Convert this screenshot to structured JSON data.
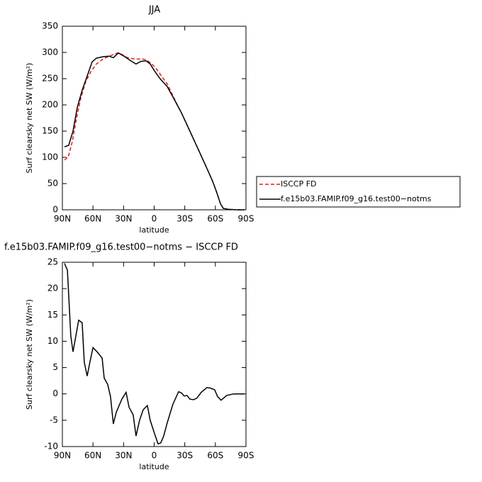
{
  "chart_data": [
    {
      "type": "line",
      "title": "JJA",
      "xlabel": "latitude",
      "ylabel": "Surf clearsky net SW (W/m²)",
      "xlim": [
        90,
        -90
      ],
      "xticks": [
        {
          "value": 90,
          "label": "90N"
        },
        {
          "value": 60,
          "label": "60N"
        },
        {
          "value": 30,
          "label": "30N"
        },
        0,
        {
          "value": -30,
          "label": "30S"
        },
        {
          "value": -60,
          "label": "60S"
        },
        {
          "value": -90,
          "label": "90S"
        }
      ],
      "ylim": [
        0,
        350
      ],
      "yticks": [
        0,
        50,
        100,
        150,
        200,
        250,
        300,
        350
      ],
      "legend": "right",
      "series": [
        {
          "name": "ISCCP FD",
          "color": "#e41a1c",
          "linestyle": "dashed",
          "x": [
            88,
            84.4,
            80.3,
            76.1,
            71.9,
            67,
            62.2,
            56.7,
            49.7,
            42.8,
            35.8,
            32.4,
            26.1,
            17.8,
            12.2,
            8,
            3.2,
            -1.7,
            -7.2,
            -12.8,
            -19,
            -26.7,
            -35,
            -43.3,
            -51,
            -57.2,
            -61.4,
            -64.9,
            -67.6,
            -72.5,
            -81.5,
            -88.5
          ],
          "values": [
            95,
            100,
            130,
            175,
            213,
            245,
            263,
            278,
            288,
            294,
            299,
            297,
            290,
            287,
            288,
            286,
            280,
            270,
            255,
            240,
            215,
            185,
            150,
            115,
            82,
            55,
            33,
            12,
            3,
            1,
            0,
            0
          ]
        },
        {
          "name": "f.e15b03.FAMIP.f09_g16.test00−notms",
          "color": "#000000",
          "linestyle": "solid",
          "x": [
            88,
            83.8,
            79.6,
            75.4,
            70.6,
            65.7,
            60.8,
            56.7,
            49.7,
            44.2,
            40,
            35.1,
            32.4,
            28.9,
            22,
            17.8,
            13,
            8,
            3.9,
            -0.3,
            -5.8,
            -12.8,
            -19,
            -26.7,
            -35,
            -43.3,
            -51,
            -57.2,
            -61.4,
            -64.9,
            -67.6,
            -72.5,
            -81.5,
            -88.5
          ],
          "values": [
            120,
            123,
            150,
            195,
            228,
            255,
            282,
            289,
            292,
            293,
            290,
            299,
            296,
            292,
            283,
            278,
            283,
            284,
            278,
            265,
            250,
            235,
            213,
            185,
            150,
            115,
            82,
            55,
            33,
            12,
            3,
            1,
            0,
            0
          ]
        }
      ]
    },
    {
      "type": "line",
      "title": "f.e15b03.FAMIP.f09_g16.test00−notms − ISCCP FD",
      "xlabel": "latitude",
      "ylabel": "Surf clearsky net SW (W/m²)",
      "xlim": [
        90,
        -90
      ],
      "xticks": [
        {
          "value": 90,
          "label": "90N"
        },
        {
          "value": 60,
          "label": "60N"
        },
        {
          "value": 30,
          "label": "30N"
        },
        0,
        {
          "value": -30,
          "label": "30S"
        },
        {
          "value": -60,
          "label": "60S"
        },
        {
          "value": -90,
          "label": "90S"
        }
      ],
      "ylim": [
        -10,
        25
      ],
      "yticks": [
        -10,
        -5,
        0,
        5,
        10,
        15,
        20,
        25
      ],
      "series": [
        {
          "color": "#000000",
          "linestyle": "solid",
          "x": [
            88,
            85.1,
            81.7,
            79.6,
            74,
            70.6,
            68.5,
            65.7,
            63,
            60,
            56,
            51,
            49,
            45.6,
            42.8,
            40,
            37.2,
            31.7,
            27.5,
            24.7,
            20.6,
            17.8,
            14.3,
            10.8,
            6.7,
            3.9,
            -0.3,
            -3.8,
            -6.5,
            -9.3,
            -12.8,
            -18.3,
            -23.9,
            -26.7,
            -29.4,
            -32.2,
            -35,
            -38.5,
            -41.9,
            -46.1,
            -51.7,
            -55.1,
            -59.3,
            -62.1,
            -65.6,
            -71.1,
            -78,
            -88.5
          ],
          "values": [
            24.8,
            23.5,
            11,
            8,
            14,
            13.5,
            6,
            3.4,
            6,
            8.8,
            8,
            6.8,
            3,
            1.8,
            -0.5,
            -5.7,
            -3.5,
            -1,
            0.3,
            -2.5,
            -4,
            -8,
            -5,
            -3,
            -2.2,
            -5,
            -7.5,
            -9.5,
            -9.3,
            -8,
            -5.5,
            -2,
            0.4,
            0.2,
            -0.4,
            -0.3,
            -1,
            -1.1,
            -0.8,
            0.3,
            1.2,
            1.1,
            0.8,
            -0.5,
            -1.2,
            -0.3,
            0,
            0
          ]
        }
      ]
    }
  ]
}
